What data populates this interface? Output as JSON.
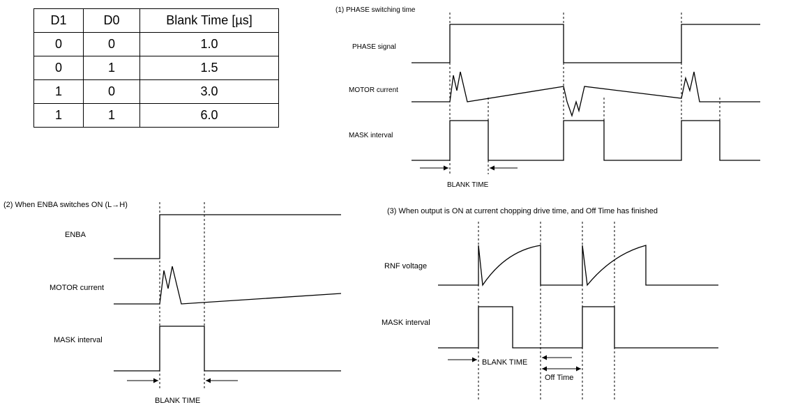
{
  "table": {
    "headers": [
      "D1",
      "D0",
      "Blank Time [µs]"
    ],
    "rows": [
      [
        "0",
        "0",
        "1.0"
      ],
      [
        "0",
        "1",
        "1.5"
      ],
      [
        "1",
        "0",
        "3.0"
      ],
      [
        "1",
        "1",
        "6.0"
      ]
    ]
  },
  "panel1": {
    "title": "(1) PHASE switching time",
    "phase_label": "PHASE signal",
    "motor_label": "MOTOR current",
    "mask_label": "MASK interval",
    "blank_label": "BLANK TIME"
  },
  "panel2": {
    "title": "(2) When ENBA switches ON (L→H)",
    "enba_label": "ENBA",
    "motor_label": "MOTOR current",
    "mask_label": "MASK interval",
    "blank_label": "BLANK TIME"
  },
  "panel3": {
    "title": "(3) When output is ON at current chopping drive time, and Off Time has finished",
    "rnf_label": "RNF voltage",
    "mask_label": "MASK interval",
    "blank_label": "BLANK TIME",
    "off_label": "Off Time"
  }
}
